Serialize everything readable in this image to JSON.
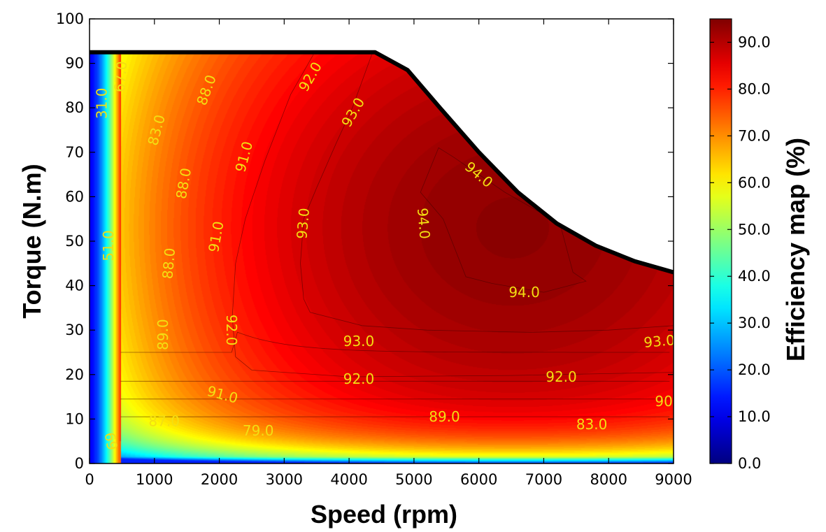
{
  "chart_data": {
    "type": "heatmap",
    "subtype": "filled-contour",
    "title": "",
    "xlabel": "Speed (rpm)",
    "ylabel": "Torque (N.m)",
    "xlim": [
      0,
      9000
    ],
    "ylim": [
      0,
      100
    ],
    "xticks": [
      "0",
      "1000",
      "2000",
      "3000",
      "4000",
      "5000",
      "6000",
      "7000",
      "8000",
      "9000"
    ],
    "yticks": [
      "0",
      "10",
      "20",
      "30",
      "40",
      "50",
      "60",
      "70",
      "80",
      "90",
      "100"
    ],
    "colorbar": {
      "label": "Efficiency map (%)",
      "range": [
        0,
        95
      ],
      "colormap": "jet",
      "ticks": [
        "0.0",
        "10.0",
        "20.0",
        "30.0",
        "40.0",
        "50.0",
        "60.0",
        "70.0",
        "80.0",
        "90.0"
      ]
    },
    "torque_limit_curve": [
      {
        "speed": 0,
        "torque": 92.5
      },
      {
        "speed": 4400,
        "torque": 92.5
      },
      {
        "speed": 4900,
        "torque": 88.5
      },
      {
        "speed": 5400,
        "torque": 80
      },
      {
        "speed": 6000,
        "torque": 70
      },
      {
        "speed": 6600,
        "torque": 61
      },
      {
        "speed": 7200,
        "torque": 54
      },
      {
        "speed": 7800,
        "torque": 49
      },
      {
        "speed": 8400,
        "torque": 45.5
      },
      {
        "speed": 9000,
        "torque": 43
      }
    ],
    "contour_labels": [
      {
        "text": "31.0",
        "speed": 190,
        "torque": 81,
        "angle": -90
      },
      {
        "text": "51.0",
        "speed": 290,
        "torque": 49,
        "angle": -90
      },
      {
        "text": "67.0",
        "speed": 480,
        "torque": 87,
        "angle": -85
      },
      {
        "text": "83.0",
        "speed": 1030,
        "torque": 75,
        "angle": -75
      },
      {
        "text": "88.0",
        "speed": 1800,
        "torque": 84,
        "angle": -70
      },
      {
        "text": "88.0",
        "speed": 1450,
        "torque": 63,
        "angle": -80
      },
      {
        "text": "88.0",
        "speed": 1220,
        "torque": 45,
        "angle": -85
      },
      {
        "text": "89.0",
        "speed": 1130,
        "torque": 29,
        "angle": -90
      },
      {
        "text": "91.0",
        "speed": 2380,
        "torque": 69,
        "angle": -75
      },
      {
        "text": "91.0",
        "speed": 1950,
        "torque": 51,
        "angle": -80
      },
      {
        "text": "92.0",
        "speed": 2190,
        "torque": 30,
        "angle": 90
      },
      {
        "text": "92.0",
        "speed": 3400,
        "torque": 87,
        "angle": -60
      },
      {
        "text": "93.0",
        "speed": 4060,
        "torque": 79,
        "angle": -60
      },
      {
        "text": "93.0",
        "speed": 3290,
        "torque": 54,
        "angle": -85
      },
      {
        "text": "94.0",
        "speed": 6000,
        "torque": 65,
        "angle": 40
      },
      {
        "text": "94.0",
        "speed": 5150,
        "torque": 54,
        "angle": 85
      },
      {
        "text": "94.0",
        "speed": 6700,
        "torque": 38.5,
        "angle": 0
      },
      {
        "text": "93.0",
        "speed": 4150,
        "torque": 27.5,
        "angle": 0
      },
      {
        "text": "93.0",
        "speed": 8780,
        "torque": 27.5,
        "angle": -5
      },
      {
        "text": "92.0",
        "speed": 4150,
        "torque": 19,
        "angle": 0
      },
      {
        "text": "92.0",
        "speed": 7270,
        "torque": 19.5,
        "angle": 0
      },
      {
        "text": "91.0",
        "speed": 2050,
        "torque": 15.5,
        "angle": 15
      },
      {
        "text": "90",
        "speed": 8850,
        "torque": 14,
        "angle": 0
      },
      {
        "text": "87.0",
        "speed": 1150,
        "torque": 9.5,
        "angle": 0
      },
      {
        "text": "89.0",
        "speed": 5470,
        "torque": 10.5,
        "angle": 0
      },
      {
        "text": "83.0",
        "speed": 7740,
        "torque": 8.8,
        "angle": 0
      },
      {
        "text": "79.0",
        "speed": 2600,
        "torque": 7.4,
        "angle": 0
      },
      {
        "text": "69",
        "speed": 330,
        "torque": 5,
        "angle": 80
      }
    ]
  }
}
